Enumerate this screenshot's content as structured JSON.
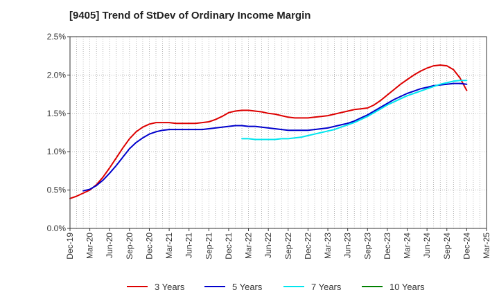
{
  "chart_data": {
    "type": "line",
    "title": "[9405]  Trend of StDev of Ordinary Income Margin",
    "xlabel": "",
    "ylabel": "",
    "x_ticks": [
      "Dec-19",
      "Mar-20",
      "Jun-20",
      "Sep-20",
      "Dec-20",
      "Mar-21",
      "Jun-21",
      "Sep-21",
      "Dec-21",
      "Mar-22",
      "Jun-22",
      "Sep-22",
      "Dec-22",
      "Mar-23",
      "Jun-23",
      "Sep-23",
      "Dec-23",
      "Mar-24",
      "Jun-24",
      "Sep-24",
      "Dec-24",
      "Mar-25"
    ],
    "y_ticks": [
      "0.0%",
      "0.5%",
      "1.0%",
      "1.5%",
      "2.0%",
      "2.5%"
    ],
    "y_tick_values": [
      0,
      0.5,
      1.0,
      1.5,
      2.0,
      2.5
    ],
    "ylim": [
      0,
      2.5
    ],
    "grid": true,
    "legend_position": "bottom",
    "series": [
      {
        "name": "3 Years",
        "color": "#dd0000",
        "x": [
          "Dec-19",
          "Jan-20",
          "Feb-20",
          "Mar-20",
          "Apr-20",
          "May-20",
          "Jun-20",
          "Jul-20",
          "Aug-20",
          "Sep-20",
          "Oct-20",
          "Nov-20",
          "Dec-20",
          "Jan-21",
          "Feb-21",
          "Mar-21",
          "Apr-21",
          "May-21",
          "Jun-21",
          "Jul-21",
          "Aug-21",
          "Sep-21",
          "Oct-21",
          "Nov-21",
          "Dec-21",
          "Jan-22",
          "Feb-22",
          "Mar-22",
          "Apr-22",
          "May-22",
          "Jun-22",
          "Jul-22",
          "Aug-22",
          "Sep-22",
          "Oct-22",
          "Nov-22",
          "Dec-22",
          "Jan-23",
          "Feb-23",
          "Mar-23",
          "Apr-23",
          "May-23",
          "Jun-23",
          "Jul-23",
          "Aug-23",
          "Sep-23",
          "Oct-23",
          "Nov-23",
          "Dec-23",
          "Jan-24",
          "Feb-24",
          "Mar-24",
          "Apr-24",
          "May-24",
          "Jun-24",
          "Jul-24",
          "Aug-24",
          "Sep-24",
          "Oct-24",
          "Nov-24",
          "Dec-24"
        ],
        "values": [
          0.39,
          0.42,
          0.46,
          0.5,
          0.57,
          0.67,
          0.79,
          0.92,
          1.05,
          1.17,
          1.26,
          1.32,
          1.36,
          1.38,
          1.38,
          1.38,
          1.37,
          1.37,
          1.37,
          1.37,
          1.38,
          1.39,
          1.42,
          1.46,
          1.51,
          1.53,
          1.54,
          1.54,
          1.53,
          1.52,
          1.5,
          1.49,
          1.47,
          1.45,
          1.44,
          1.44,
          1.44,
          1.45,
          1.46,
          1.47,
          1.49,
          1.51,
          1.53,
          1.55,
          1.56,
          1.57,
          1.61,
          1.67,
          1.74,
          1.81,
          1.88,
          1.94,
          2.0,
          2.05,
          2.09,
          2.12,
          2.13,
          2.12,
          2.07,
          1.96,
          1.8
        ]
      },
      {
        "name": "5 Years",
        "color": "#0000cc",
        "x": [
          "Feb-20",
          "Mar-20",
          "Apr-20",
          "May-20",
          "Jun-20",
          "Jul-20",
          "Aug-20",
          "Sep-20",
          "Oct-20",
          "Nov-20",
          "Dec-20",
          "Jan-21",
          "Feb-21",
          "Mar-21",
          "Apr-21",
          "May-21",
          "Jun-21",
          "Jul-21",
          "Aug-21",
          "Sep-21",
          "Oct-21",
          "Nov-21",
          "Dec-21",
          "Jan-22",
          "Feb-22",
          "Mar-22",
          "Apr-22",
          "May-22",
          "Jun-22",
          "Jul-22",
          "Aug-22",
          "Sep-22",
          "Oct-22",
          "Nov-22",
          "Dec-22",
          "Jan-23",
          "Feb-23",
          "Mar-23",
          "Apr-23",
          "May-23",
          "Jun-23",
          "Jul-23",
          "Aug-23",
          "Sep-23",
          "Oct-23",
          "Nov-23",
          "Dec-23",
          "Jan-24",
          "Feb-24",
          "Mar-24",
          "Apr-24",
          "May-24",
          "Jun-24",
          "Jul-24",
          "Aug-24",
          "Sep-24",
          "Oct-24",
          "Nov-24",
          "Dec-24"
        ],
        "values": [
          0.49,
          0.51,
          0.56,
          0.63,
          0.72,
          0.82,
          0.93,
          1.04,
          1.12,
          1.18,
          1.23,
          1.26,
          1.28,
          1.29,
          1.29,
          1.29,
          1.29,
          1.29,
          1.29,
          1.3,
          1.31,
          1.32,
          1.33,
          1.34,
          1.34,
          1.33,
          1.33,
          1.32,
          1.31,
          1.3,
          1.29,
          1.28,
          1.28,
          1.28,
          1.28,
          1.29,
          1.3,
          1.31,
          1.33,
          1.35,
          1.37,
          1.4,
          1.44,
          1.48,
          1.53,
          1.58,
          1.63,
          1.68,
          1.72,
          1.76,
          1.79,
          1.82,
          1.84,
          1.86,
          1.87,
          1.88,
          1.89,
          1.89,
          1.88
        ]
      },
      {
        "name": "7 Years",
        "color": "#00e5ee",
        "x": [
          "Feb-22",
          "Mar-22",
          "Apr-22",
          "May-22",
          "Jun-22",
          "Jul-22",
          "Aug-22",
          "Sep-22",
          "Oct-22",
          "Nov-22",
          "Dec-22",
          "Jan-23",
          "Feb-23",
          "Mar-23",
          "Apr-23",
          "May-23",
          "Jun-23",
          "Jul-23",
          "Aug-23",
          "Sep-23",
          "Oct-23",
          "Nov-23",
          "Dec-23",
          "Jan-24",
          "Feb-24",
          "Mar-24",
          "Apr-24",
          "May-24",
          "Jun-24",
          "Jul-24",
          "Aug-24",
          "Sep-24",
          "Oct-24",
          "Nov-24",
          "Dec-24"
        ],
        "values": [
          1.17,
          1.17,
          1.16,
          1.16,
          1.16,
          1.16,
          1.17,
          1.17,
          1.18,
          1.19,
          1.21,
          1.23,
          1.25,
          1.27,
          1.29,
          1.32,
          1.35,
          1.38,
          1.42,
          1.46,
          1.51,
          1.56,
          1.61,
          1.65,
          1.69,
          1.73,
          1.76,
          1.79,
          1.82,
          1.85,
          1.88,
          1.9,
          1.92,
          1.93,
          1.93
        ]
      },
      {
        "name": "10 Years",
        "color": "#008000",
        "x": [],
        "values": []
      }
    ]
  }
}
